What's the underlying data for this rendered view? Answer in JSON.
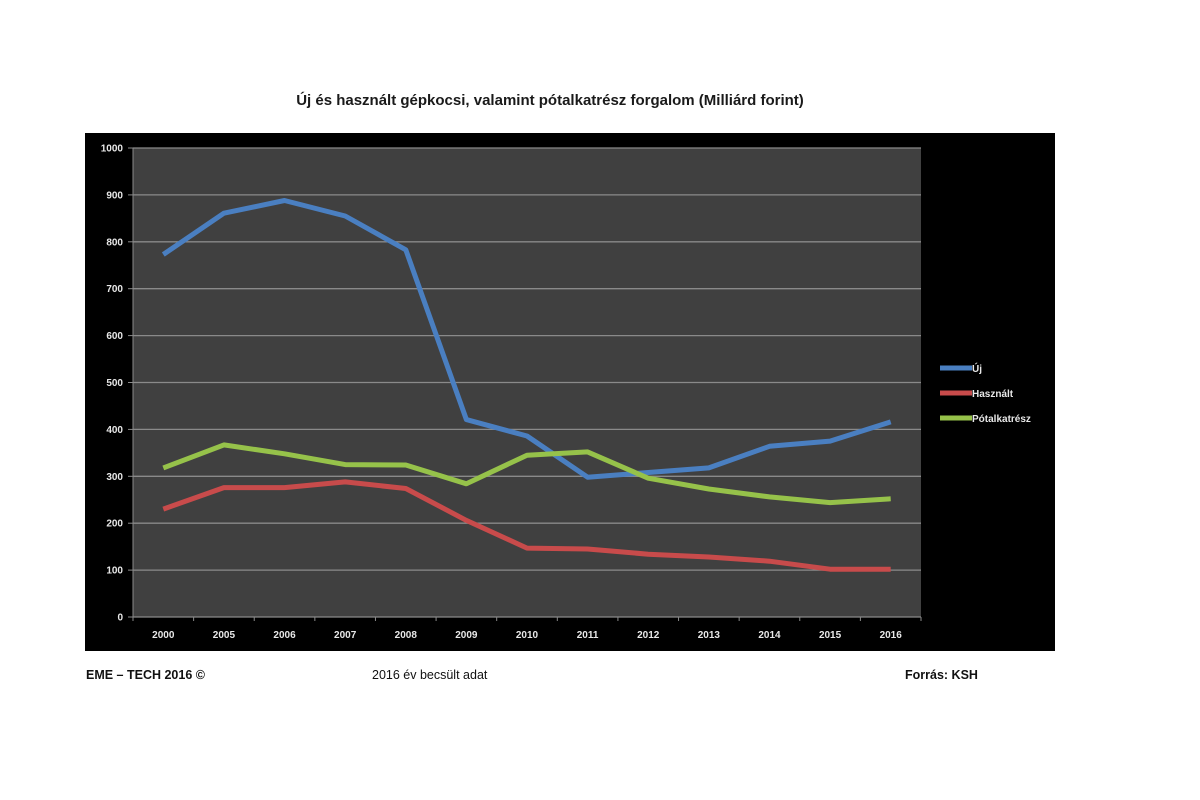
{
  "chart_data": {
    "type": "line",
    "title": "Új és használt gépkocsi, valamint pótalkatrész forgalom (Milliárd forint)",
    "xlabel": "",
    "ylabel": "",
    "ylim": [
      0,
      1000
    ],
    "yticks": [
      "0",
      "100",
      "200",
      "300",
      "400",
      "500",
      "600",
      "700",
      "800",
      "900",
      "1000"
    ],
    "categories": [
      "2000",
      "2005",
      "2006",
      "2007",
      "2008",
      "2009",
      "2010",
      "2011",
      "2012",
      "2013",
      "2014",
      "2015",
      "2016"
    ],
    "grid": true,
    "legend_position": "right",
    "series": [
      {
        "name": "Új",
        "color": "#4a7fc1",
        "values": [
          773,
          861,
          888,
          855,
          783,
          421,
          386,
          298,
          308,
          318,
          364,
          375,
          416
        ]
      },
      {
        "name": "Használt",
        "color": "#c84b4b",
        "values": [
          230,
          276,
          276,
          288,
          274,
          206,
          147,
          145,
          134,
          128,
          119,
          102,
          102
        ]
      },
      {
        "name": "Pótalkatrész",
        "color": "#96c24a",
        "values": [
          318,
          367,
          348,
          325,
          324,
          284,
          345,
          352,
          296,
          273,
          256,
          244,
          252
        ]
      }
    ]
  },
  "footer": {
    "left": "EME – TECH 2016 ©",
    "middle": "2016 év becsült adat",
    "right": "Forrás: KSH"
  }
}
